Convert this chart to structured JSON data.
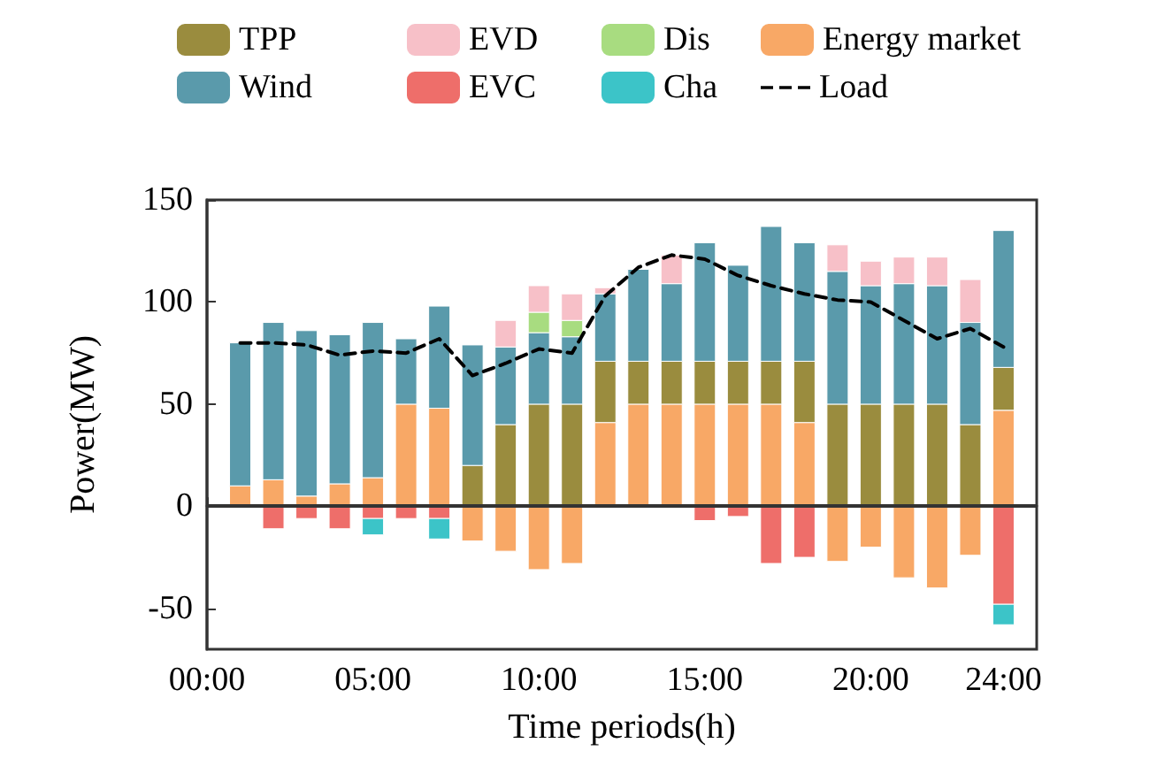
{
  "chart_data": {
    "type": "bar",
    "stacked": true,
    "xlabel": "Time periods(h)",
    "ylabel": "Power(MW)",
    "x": [
      1,
      2,
      3,
      4,
      5,
      6,
      7,
      8,
      9,
      10,
      11,
      12,
      13,
      14,
      15,
      16,
      17,
      18,
      19,
      20,
      21,
      22,
      23,
      24
    ],
    "xlim": [
      0,
      25
    ],
    "xticks": [
      {
        "value": 0,
        "label": "00:00"
      },
      {
        "value": 5,
        "label": "05:00"
      },
      {
        "value": 10,
        "label": "10:00"
      },
      {
        "value": 15,
        "label": "15:00"
      },
      {
        "value": 20,
        "label": "20:00"
      },
      {
        "value": 24,
        "label": "24:00"
      }
    ],
    "ylim": [
      -70,
      150
    ],
    "yticks": [
      -50,
      0,
      50,
      100,
      150
    ],
    "grid": false,
    "legend": "top",
    "ref_lines": [
      {
        "axis": "y",
        "value": 0,
        "color": "#333333"
      }
    ],
    "series": [
      {
        "name": "Energy market",
        "color": "#f8a866",
        "values": [
          10,
          13,
          5,
          11,
          14,
          50,
          48,
          -17,
          -22,
          -31,
          -28,
          41,
          50,
          50,
          50,
          50,
          50,
          41,
          -27,
          -20,
          -35,
          -40,
          -24,
          47
        ]
      },
      {
        "name": "TPP",
        "color": "#9a8c3e",
        "values": [
          null,
          null,
          null,
          null,
          null,
          null,
          null,
          20,
          40,
          50,
          50,
          30,
          21,
          21,
          21,
          21,
          21,
          30,
          50,
          50,
          50,
          50,
          40,
          21
        ]
      },
      {
        "name": "Wind",
        "color": "#5a9aab",
        "values": [
          70,
          77,
          81,
          73,
          76,
          32,
          50,
          59,
          38,
          35,
          33,
          33,
          45,
          38,
          58,
          47,
          66,
          58,
          65,
          58,
          59,
          58,
          50,
          67
        ]
      },
      {
        "name": "Dis",
        "color": "#a8dc80",
        "values": [
          null,
          null,
          null,
          null,
          null,
          null,
          null,
          null,
          null,
          10,
          8,
          null,
          null,
          null,
          null,
          null,
          null,
          null,
          null,
          null,
          null,
          null,
          null,
          null
        ]
      },
      {
        "name": "EVD",
        "color": "#f7c0c8",
        "values": [
          null,
          null,
          null,
          null,
          null,
          null,
          null,
          null,
          13,
          13,
          13,
          3,
          null,
          14,
          null,
          null,
          null,
          null,
          13,
          12,
          13,
          14,
          21,
          null
        ]
      },
      {
        "name": "EVC",
        "color": "#ee6e6a",
        "values": [
          null,
          -11,
          -6,
          -11,
          -6,
          -6,
          -6,
          null,
          null,
          null,
          null,
          null,
          null,
          null,
          -7,
          -5,
          -28,
          -25,
          null,
          null,
          null,
          null,
          null,
          -48
        ]
      },
      {
        "name": "Cha",
        "color": "#3cc4c8",
        "values": [
          null,
          null,
          null,
          null,
          -8,
          null,
          -10,
          null,
          null,
          null,
          null,
          null,
          null,
          null,
          null,
          null,
          null,
          null,
          null,
          null,
          null,
          null,
          null,
          -10
        ]
      },
      {
        "name": "Load",
        "type": "line",
        "color": "#000000",
        "line_style": "dashed",
        "marker": "none",
        "values": [
          80,
          80,
          79,
          74,
          76,
          75,
          82,
          64,
          70,
          77,
          75,
          103,
          117,
          123,
          121,
          113,
          108,
          104,
          101,
          100,
          91,
          82,
          87,
          78
        ]
      }
    ]
  }
}
